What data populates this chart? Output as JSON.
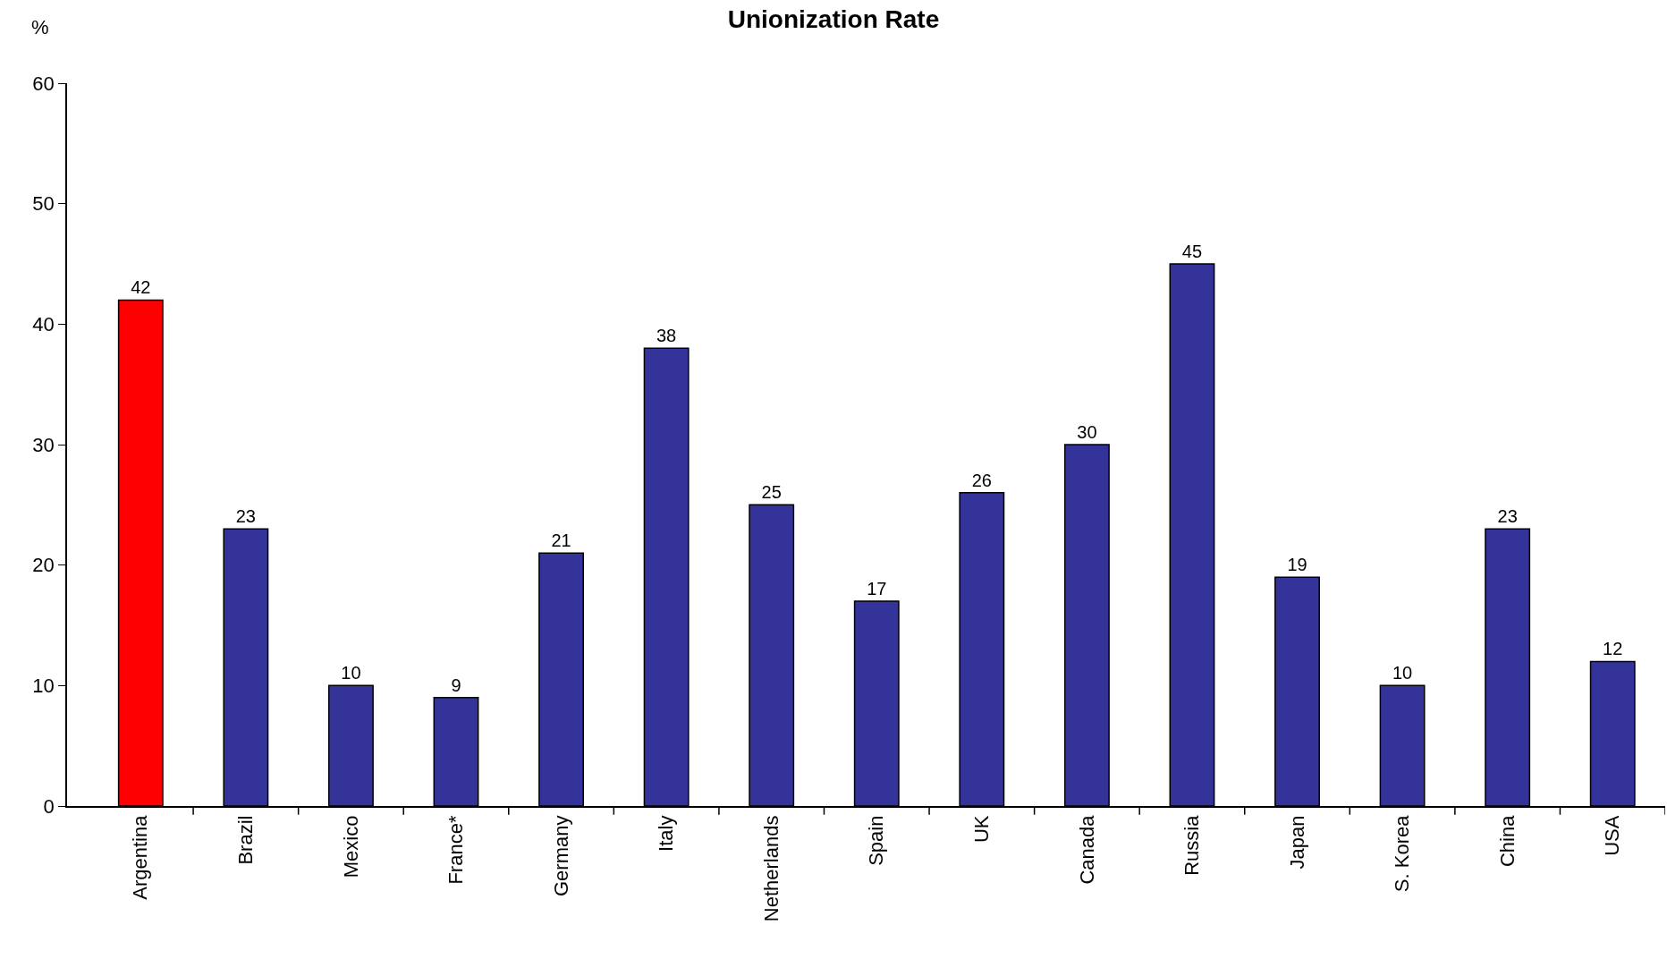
{
  "chart_data": {
    "type": "bar",
    "title": "Unionization Rate",
    "ylabel": "%",
    "categories": [
      "Argentina",
      "Brazil",
      "Mexico",
      "France*",
      "Germany",
      "Italy",
      "Netherlands",
      "Spain",
      "UK",
      "Canada",
      "Russia",
      "Japan",
      "S. Korea",
      "China",
      "USA"
    ],
    "values": [
      42,
      23,
      10,
      9,
      21,
      38,
      25,
      17,
      26,
      30,
      45,
      19,
      10,
      23,
      12
    ],
    "colors": [
      "#ff0000",
      "#333399",
      "#333399",
      "#333399",
      "#333399",
      "#333399",
      "#333399",
      "#333399",
      "#333399",
      "#333399",
      "#333399",
      "#333399",
      "#333399",
      "#333399",
      "#333399"
    ],
    "ylim": [
      0,
      60
    ],
    "yticks": [
      0,
      10,
      20,
      30,
      40,
      50,
      60
    ],
    "data_labels": true,
    "legend": false
  }
}
